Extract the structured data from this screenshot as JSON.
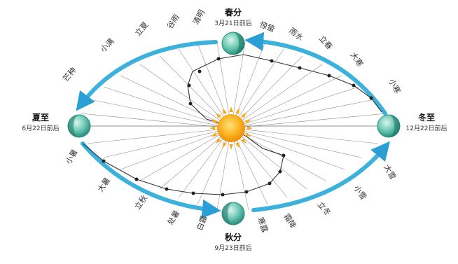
{
  "equinoxes_solstices": {
    "spring": {
      "name": "春分",
      "date": "3月21日前后"
    },
    "summer": {
      "name": "夏至",
      "date": "6月22日前后"
    },
    "autumn": {
      "name": "秋分",
      "date": "9月23日前后"
    },
    "winter": {
      "name": "冬至",
      "date": "12月22日前后"
    }
  },
  "solar_terms": {
    "upper": [
      "惊蛰",
      "雨水",
      "立春",
      "大寒",
      "小寒",
      "清明",
      "谷雨",
      "立夏",
      "小满",
      "芒种"
    ],
    "lower": [
      "小暑",
      "大暑",
      "立秋",
      "处暑",
      "白露",
      "寒露",
      "霜降",
      "立冬",
      "小雪",
      "大雪"
    ]
  },
  "colors": {
    "orbit_arrow": "#3bb1dc",
    "earth": "#3fb39c",
    "sun": "#f7a81b",
    "analemma": "#333333"
  }
}
